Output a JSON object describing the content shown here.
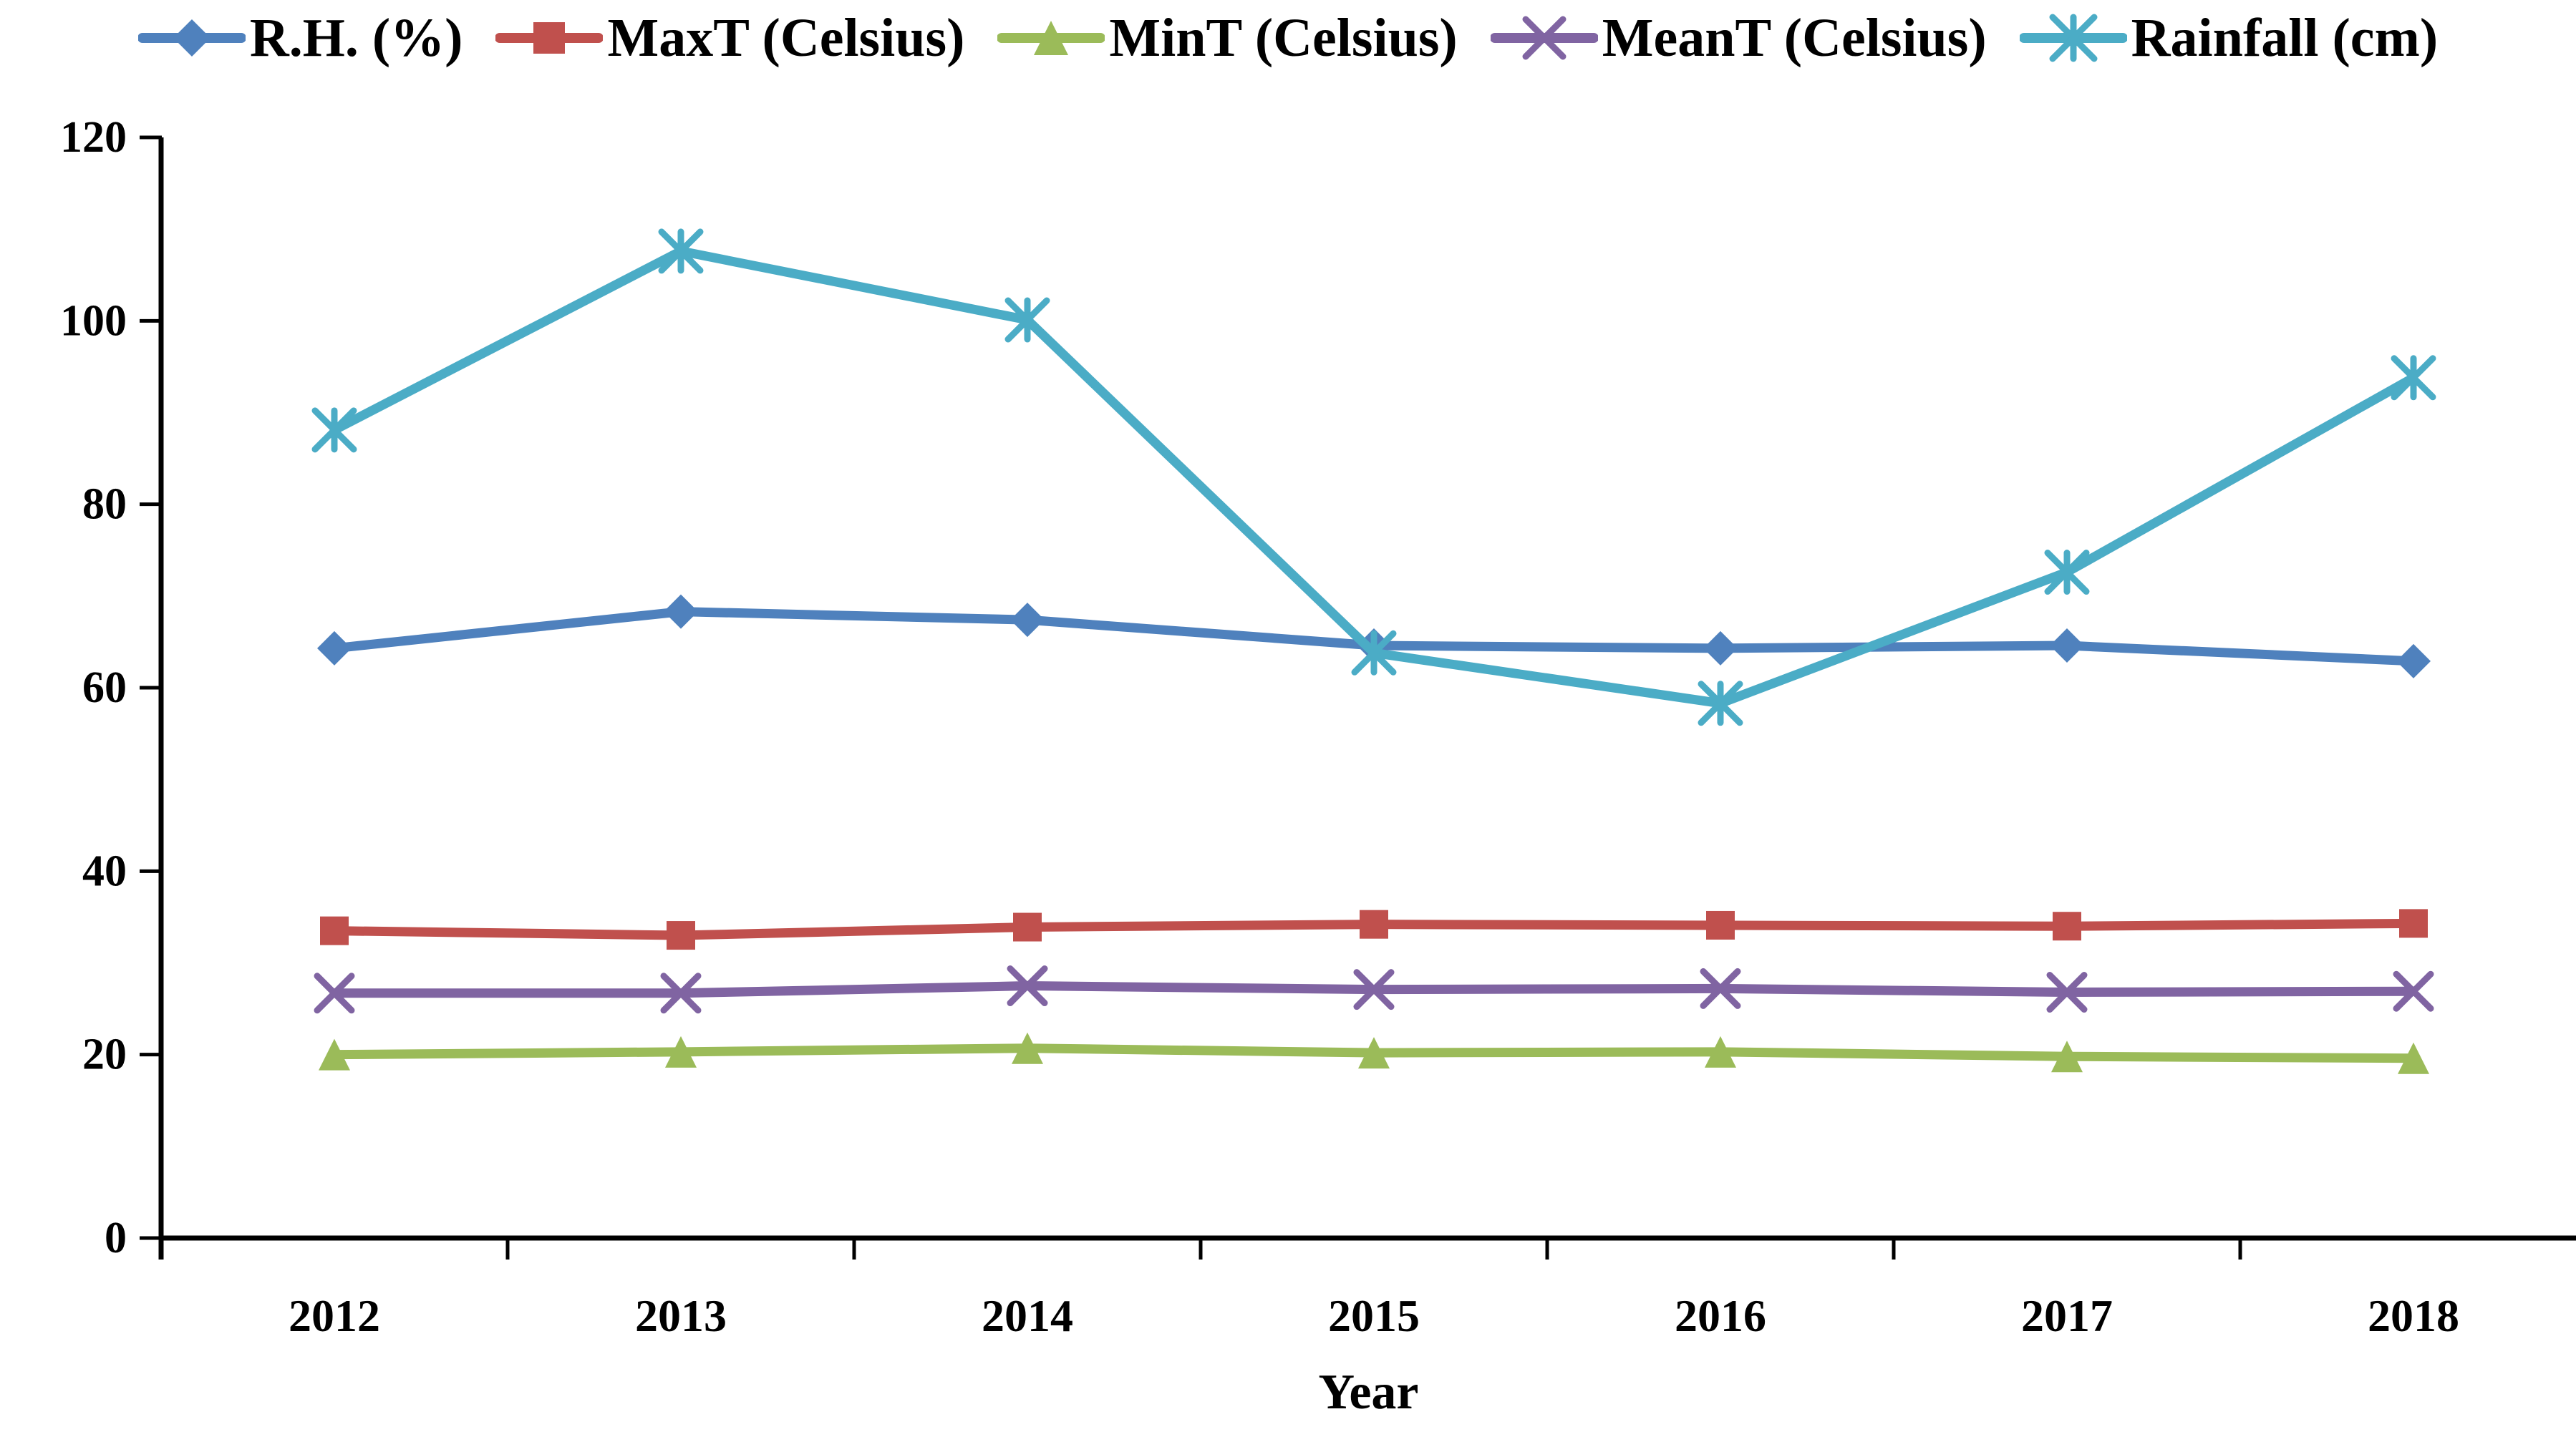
{
  "chart_data": {
    "type": "line",
    "title": "",
    "xlabel": "Year",
    "ylabel": "",
    "categories": [
      "2012",
      "2013",
      "2014",
      "2015",
      "2016",
      "2017",
      "2018"
    ],
    "series": [
      {
        "name": "R.H. (%)",
        "color": "#4F81BD",
        "marker": "diamond",
        "values": [
          64.3,
          68.3,
          67.4,
          64.6,
          64.3,
          64.6,
          62.9
        ]
      },
      {
        "name": "MaxT (Celsius)",
        "color": "#C0504D",
        "marker": "square",
        "values": [
          33.5,
          33.0,
          33.9,
          34.2,
          34.1,
          34.0,
          34.3
        ]
      },
      {
        "name": "MinT (Celsius)",
        "color": "#9BBB59",
        "marker": "triangle",
        "values": [
          20.0,
          20.3,
          20.7,
          20.2,
          20.3,
          19.8,
          19.6
        ]
      },
      {
        "name": "MeanT (Celsius)",
        "color": "#8064A2",
        "marker": "x",
        "values": [
          26.7,
          26.7,
          27.5,
          27.1,
          27.2,
          26.8,
          26.9
        ]
      },
      {
        "name": "Rainfall (cm)",
        "color": "#4BACC6",
        "marker": "asterisk",
        "values": [
          88.1,
          107.6,
          100.1,
          63.8,
          58.3,
          72.6,
          93.8
        ]
      }
    ],
    "ylim": [
      0,
      120
    ],
    "yticks": [
      0,
      20,
      40,
      60,
      80,
      100,
      120
    ],
    "grid": false,
    "legend_position": "top",
    "axis_color": "#000000",
    "text_color": "#000000",
    "background": "#ffffff"
  }
}
